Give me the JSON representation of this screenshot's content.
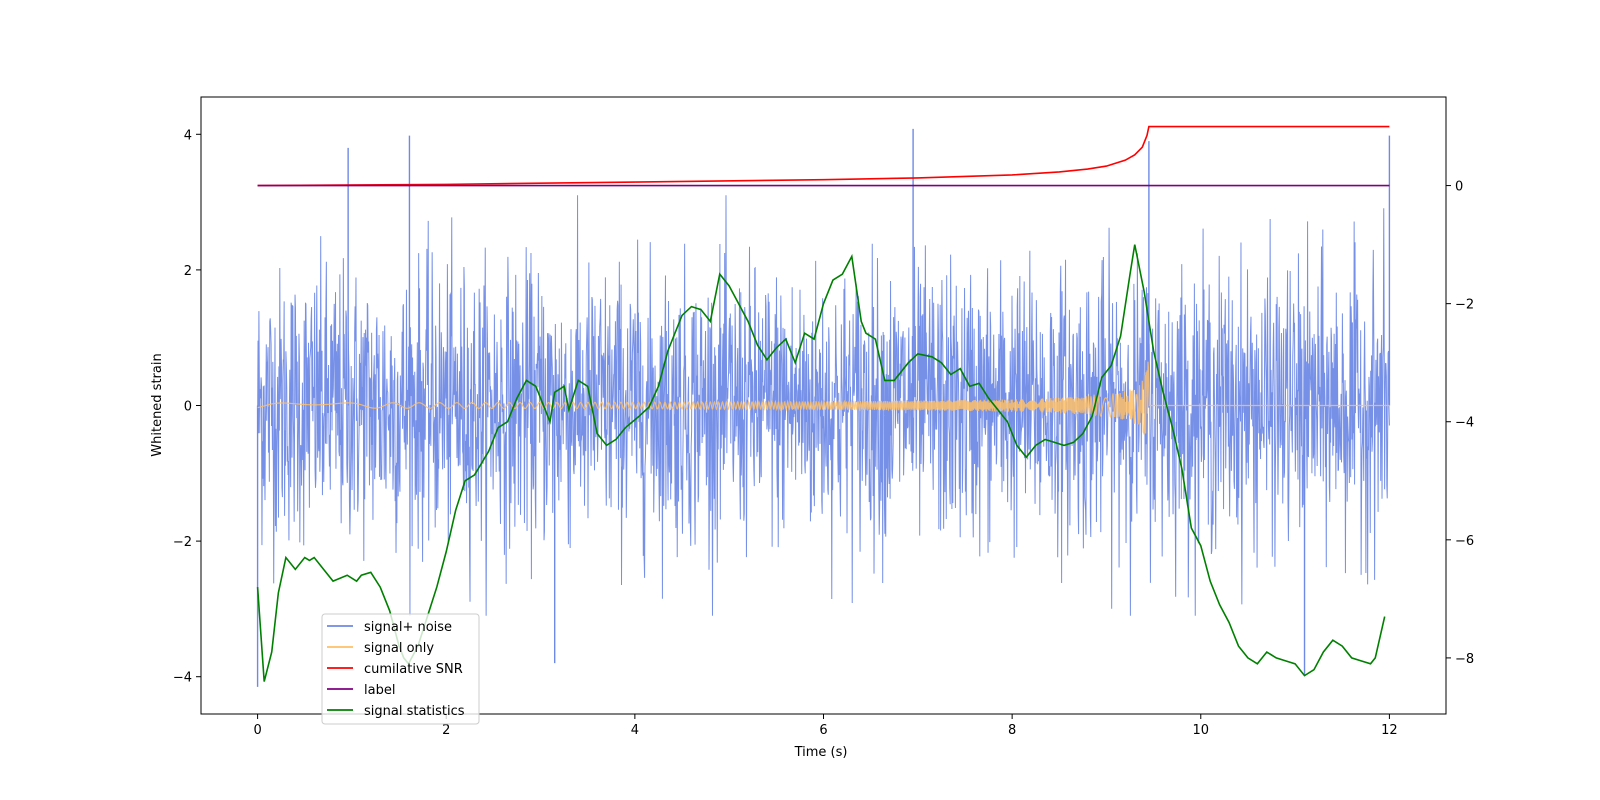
{
  "chart_data": {
    "type": "line",
    "xlabel": "Time (s)",
    "ylabel": "Whitened strain",
    "ylabel_right": "",
    "xlim": [
      -0.6,
      12.6
    ],
    "ylim": [
      -4.55,
      4.55
    ],
    "ylim_right": [
      -8.95,
      1.5
    ],
    "x_ticks": [
      0,
      2,
      4,
      6,
      8,
      10,
      12
    ],
    "y_ticks": [
      -4,
      -2,
      0,
      2,
      4
    ],
    "y_ticks_right": [
      -8,
      -6,
      -4,
      -2,
      0
    ],
    "grid": false,
    "legend_position": "lower-left",
    "series": [
      {
        "name": "signal+ noise",
        "axis": "left",
        "color": "#6f8ae6",
        "description": "noisy whitened strain, std approx 1",
        "std": 1.0,
        "x_range": [
          0,
          12
        ],
        "spikes": [
          {
            "x": 0.0,
            "y": -4.15
          },
          {
            "x": 0.96,
            "y": 3.8
          },
          {
            "x": 1.61,
            "y": 3.98
          },
          {
            "x": 3.15,
            "y": -3.8
          },
          {
            "x": 6.95,
            "y": 4.08
          },
          {
            "x": 9.45,
            "y": 3.9
          },
          {
            "x": 11.1,
            "y": -3.98
          },
          {
            "x": 12.0,
            "y": 3.98
          }
        ]
      },
      {
        "name": "signal only",
        "axis": "left",
        "color": "#ffbf66",
        "x_range": [
          0,
          12
        ],
        "chirp_end": 9.45,
        "chirp_peak_amplitude": 0.8
      },
      {
        "name": "cumilative SNR",
        "axis": "right",
        "color": "#ff0000",
        "x": [
          0,
          2,
          4,
          6,
          7,
          8,
          8.5,
          8.8,
          9.0,
          9.2,
          9.3,
          9.38,
          9.43,
          9.45,
          12
        ],
        "y": [
          0.0,
          0.02,
          0.06,
          0.1,
          0.13,
          0.18,
          0.23,
          0.28,
          0.33,
          0.43,
          0.52,
          0.65,
          0.85,
          1.0,
          1.0
        ]
      },
      {
        "name": "label",
        "axis": "right",
        "color": "#800080",
        "x": [
          0,
          12
        ],
        "y": [
          0,
          0
        ]
      },
      {
        "name": "signal statistics",
        "axis": "right",
        "color": "#008000",
        "x": [
          0,
          0.07,
          0.15,
          0.22,
          0.3,
          0.4,
          0.5,
          0.55,
          0.6,
          0.7,
          0.8,
          0.95,
          1.05,
          1.1,
          1.2,
          1.3,
          1.4,
          1.5,
          1.55,
          1.6,
          1.7,
          1.8,
          1.9,
          2.0,
          2.1,
          2.2,
          2.3,
          2.45,
          2.55,
          2.65,
          2.75,
          2.85,
          2.95,
          3.05,
          3.1,
          3.15,
          3.25,
          3.3,
          3.4,
          3.5,
          3.6,
          3.7,
          3.8,
          3.9,
          4.05,
          4.15,
          4.25,
          4.35,
          4.5,
          4.6,
          4.7,
          4.8,
          4.9,
          5.0,
          5.1,
          5.2,
          5.3,
          5.4,
          5.5,
          5.6,
          5.7,
          5.8,
          5.9,
          6.0,
          6.1,
          6.2,
          6.3,
          6.4,
          6.45,
          6.55,
          6.65,
          6.75,
          6.9,
          7.0,
          7.15,
          7.25,
          7.35,
          7.45,
          7.55,
          7.65,
          7.75,
          7.85,
          7.95,
          8.05,
          8.15,
          8.25,
          8.35,
          8.45,
          8.55,
          8.65,
          8.75,
          8.85,
          8.95,
          9.05,
          9.15,
          9.25,
          9.3,
          9.4,
          9.5,
          9.6,
          9.7,
          9.8,
          9.9,
          10.0,
          10.1,
          10.2,
          10.3,
          10.4,
          10.5,
          10.6,
          10.7,
          10.8,
          10.9,
          11.0,
          11.1,
          11.2,
          11.3,
          11.4,
          11.5,
          11.6,
          11.7,
          11.8,
          11.85,
          11.95
        ],
        "y": [
          -6.8,
          -8.4,
          -7.9,
          -6.9,
          -6.3,
          -6.5,
          -6.3,
          -6.35,
          -6.3,
          -6.5,
          -6.7,
          -6.6,
          -6.7,
          -6.6,
          -6.55,
          -6.8,
          -7.2,
          -7.8,
          -8.0,
          -8.1,
          -7.8,
          -7.3,
          -6.8,
          -6.2,
          -5.5,
          -5.0,
          -4.9,
          -4.5,
          -4.1,
          -4.0,
          -3.6,
          -3.3,
          -3.4,
          -3.8,
          -4.0,
          -3.5,
          -3.4,
          -3.8,
          -3.3,
          -3.4,
          -4.2,
          -4.4,
          -4.3,
          -4.1,
          -3.9,
          -3.75,
          -3.4,
          -2.8,
          -2.2,
          -2.05,
          -2.1,
          -2.3,
          -1.5,
          -1.7,
          -2.0,
          -2.3,
          -2.7,
          -2.95,
          -2.75,
          -2.6,
          -3.0,
          -2.5,
          -2.6,
          -2.0,
          -1.6,
          -1.5,
          -1.2,
          -2.3,
          -2.5,
          -2.6,
          -3.3,
          -3.3,
          -3.0,
          -2.85,
          -2.9,
          -3.0,
          -3.2,
          -3.1,
          -3.4,
          -3.35,
          -3.6,
          -3.8,
          -4.0,
          -4.4,
          -4.6,
          -4.4,
          -4.3,
          -4.35,
          -4.4,
          -4.35,
          -4.2,
          -3.9,
          -3.25,
          -3.05,
          -2.55,
          -1.5,
          -1.0,
          -1.8,
          -2.8,
          -3.5,
          -4.1,
          -4.8,
          -5.8,
          -6.1,
          -6.7,
          -7.1,
          -7.4,
          -7.8,
          -8.0,
          -8.1,
          -7.9,
          -8.0,
          -8.05,
          -8.1,
          -8.3,
          -8.2,
          -7.9,
          -7.7,
          -7.8,
          -8.0,
          -8.05,
          -8.1,
          -8.0,
          -7.3
        ]
      }
    ]
  }
}
